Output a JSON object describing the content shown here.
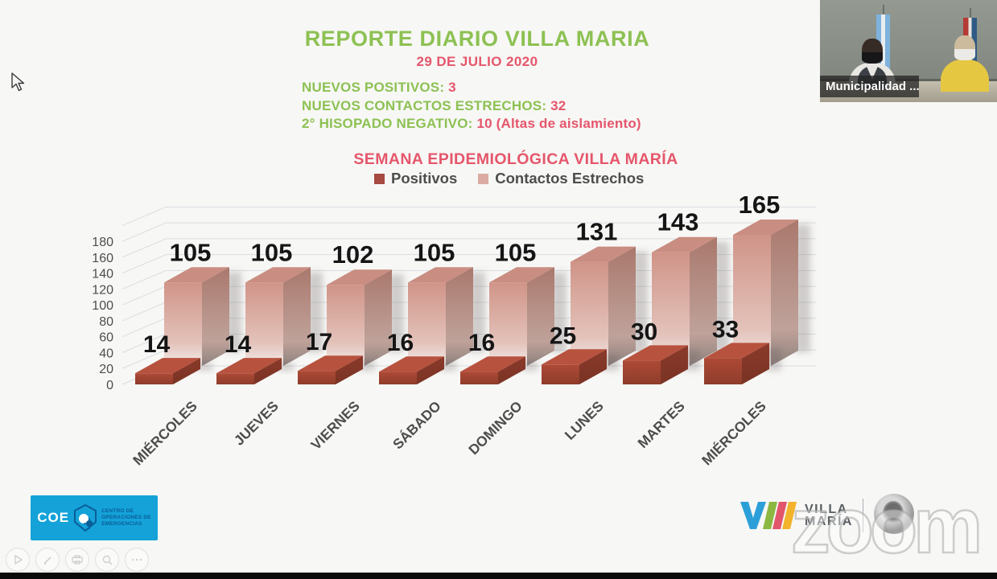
{
  "header": {
    "title": "REPORTE DIARIO VILLA MARIA",
    "date": "29 DE JULIO 2020",
    "stats": [
      {
        "label": "NUEVOS POSITIVOS:",
        "value": "3"
      },
      {
        "label": "NUEVOS CONTACTOS ESTRECHOS:",
        "value": "32"
      },
      {
        "label": "2° HISOPADO NEGATIVO:",
        "value": "10 (Altas de aislamiento)"
      }
    ]
  },
  "chart_data": {
    "type": "bar",
    "variant": "3d-column",
    "title": "SEMANA EPIDEMIOLÓGICA VILLA MARÍA",
    "categories": [
      "MIÉRCOLES",
      "JUEVES",
      "VIERNES",
      "SÁBADO",
      "DOMINGO",
      "LUNES",
      "MARTES",
      "MIÉRCOLES"
    ],
    "series": [
      {
        "name": "Positivos",
        "values": [
          14,
          14,
          17,
          16,
          16,
          25,
          30,
          33
        ],
        "color": "#a64a42"
      },
      {
        "name": "Contactos Estrechos",
        "values": [
          105,
          105,
          102,
          105,
          105,
          131,
          143,
          165
        ],
        "color": "#dcaba3"
      }
    ],
    "xlabel": "",
    "ylabel": "",
    "ylim": [
      0,
      200
    ],
    "ytick_step": 20,
    "ytick_max_labeled": 180,
    "grid": true,
    "legend_position": "top",
    "data_labels": true
  },
  "theme": {
    "green": "#8dc153",
    "red": "#e5566b",
    "text_gray": "#4d4d4d",
    "grid_color": "#d9dde2",
    "coe_blue": "#14a2d9"
  },
  "video": {
    "caption": "Municipalidad ..."
  },
  "logos": {
    "coe": {
      "abbr": "COE",
      "name_lines": [
        "CENTRO DE",
        "OPERACIONES DE",
        "EMERGENCIAS"
      ]
    },
    "city": {
      "line1": "VILLA",
      "line2": "MARÍA"
    }
  },
  "watermark": "zoom",
  "player_controls": [
    "play-icon",
    "pencil-icon",
    "printer-icon",
    "magnifier-icon",
    "more-icon"
  ]
}
